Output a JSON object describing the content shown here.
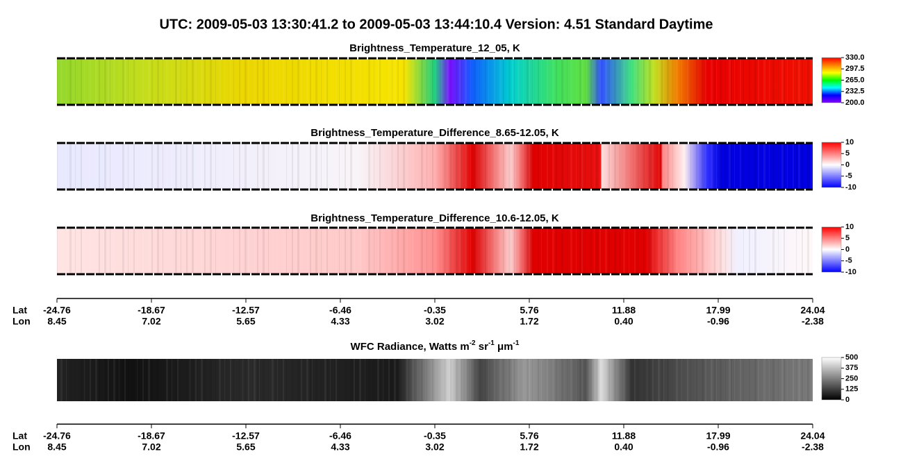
{
  "title": "UTC:  2009-05-03   13:30:41.2  to  2009-05-03   13:44:10.4    Version: 4.51  Standard Daytime",
  "panels": [
    {
      "title": [
        "Brightness_Temperature_12_05, K"
      ],
      "colorbar": {
        "lim": [
          200,
          330
        ],
        "colors": [
          "#8a00ff",
          "#0000ff",
          "#00ffff",
          "#00ff00",
          "#ffff00",
          "#ff8000",
          "#ff0000"
        ],
        "ticks": [
          {
            "value": 330,
            "label": "330.0"
          },
          {
            "value": 297.5,
            "label": "297.5"
          },
          {
            "value": 265,
            "label": "265.0"
          },
          {
            "value": 232.5,
            "label": "232.5"
          },
          {
            "value": 200,
            "label": "200.0"
          }
        ]
      }
    },
    {
      "title": [
        "Brightness_Temperature_Difference_8.65-12.05, K"
      ],
      "colorbar": {
        "lim": [
          -10,
          10
        ],
        "colors": [
          "#0000ff",
          "#ffffff",
          "#ff0000"
        ],
        "ticks": [
          10,
          5,
          0,
          -5,
          -10
        ]
      }
    },
    {
      "title": [
        "Brightness_Temperature_Difference_10.6-12.05, K"
      ],
      "colorbar": {
        "lim": [
          -10,
          10
        ],
        "colors": [
          "#0000ff",
          "#ffffff",
          "#ff0000"
        ],
        "ticks": [
          10,
          5,
          0,
          -5,
          -10
        ]
      }
    },
    {
      "title": [
        "WFC Radiance, Watts m",
        "-2",
        " sr",
        "-1",
        " μm",
        "-1"
      ],
      "colorbar": {
        "lim": [
          0,
          500
        ],
        "colors": [
          "#000000",
          "#ffffff"
        ],
        "ticks": [
          500,
          375,
          250,
          125,
          0
        ]
      }
    }
  ],
  "axes": [
    {
      "lat_label": "Lat",
      "lon_label": "Lon",
      "lat": [
        "-24.76",
        "-18.67",
        "-12.57",
        "-6.46",
        "-0.35",
        "5.76",
        "11.88",
        "17.99",
        "24.04"
      ],
      "lon": [
        "8.45",
        "7.02",
        "5.65",
        "4.33",
        "3.02",
        "1.72",
        "0.40",
        "-0.96",
        "-2.38"
      ]
    },
    {
      "lat_label": "Lat",
      "lon_label": "Lon",
      "lat": [
        "-24.76",
        "-18.67",
        "-12.57",
        "-6.46",
        "-0.35",
        "5.76",
        "11.88",
        "17.99",
        "24.04"
      ],
      "lon": [
        "8.45",
        "7.02",
        "5.65",
        "4.33",
        "3.02",
        "1.72",
        "0.40",
        "-0.96",
        "-2.38"
      ]
    }
  ]
}
